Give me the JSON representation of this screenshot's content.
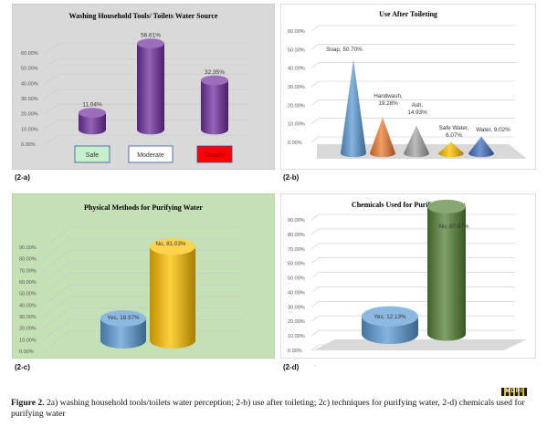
{
  "chart_data": [
    {
      "type": "bar",
      "title": "Washing Household Tools/ Toilets Water Source",
      "categories": [
        "Safe",
        "Moderate",
        "Unsafe"
      ],
      "values": [
        11.04,
        56.61,
        32.35
      ],
      "value_labels": [
        "11.04%",
        "56.61%",
        "32.35%"
      ],
      "ylim": [
        0,
        70
      ],
      "y_ticks": [
        "0.00%",
        "10.00%",
        "20.00%",
        "30.00%",
        "40.00%",
        "50.00%",
        "60.00%"
      ],
      "bar_color": "#7030a0",
      "category_box_colors": [
        "#c6efce",
        "#ffffff",
        "#ff0000"
      ],
      "grid": true,
      "background": "#d9d9d9"
    },
    {
      "type": "bar",
      "title": "Use After Toileting",
      "categories": [
        "Soap",
        "Handwash",
        "Ash",
        "Safe Water",
        "Water"
      ],
      "values": [
        50.7,
        19.28,
        14.93,
        6.07,
        9.02
      ],
      "value_labels": [
        "Soap, 50.70%",
        "Handwash, 19.28%",
        "Ash, 14.93%",
        "Safe Water, 6.07%",
        "Water, 9.02%"
      ],
      "ylim": [
        0,
        60
      ],
      "y_ticks": [
        "0.00%",
        "10.00%",
        "20.00%",
        "30.00%",
        "40.00%",
        "50.00%",
        "60.00%"
      ],
      "colors": [
        "#5b9bd5",
        "#ed7d31",
        "#a5a5a5",
        "#ffc000",
        "#4472c4"
      ],
      "grid": true
    },
    {
      "type": "bar",
      "title": "Physical Methods for Purifying Water",
      "categories": [
        "Yes",
        "No"
      ],
      "values": [
        18.97,
        81.03
      ],
      "value_labels": [
        "Yes, 18.97%",
        "No, 81.03%"
      ],
      "ylim": [
        0,
        90
      ],
      "y_ticks": [
        "0.00%",
        "10.00%",
        "20.00%",
        "30.00%",
        "40.00%",
        "50.00%",
        "60.00%",
        "70.00%",
        "80.00%",
        "90.00%"
      ],
      "colors": [
        "#5b9bd5",
        "#ffc000"
      ],
      "grid": true,
      "background": "#c5e0b4"
    },
    {
      "type": "bar",
      "title": "Chemicals Used for Purifying Water",
      "categories": [
        "Yes",
        "No"
      ],
      "values": [
        12.13,
        87.87
      ],
      "value_labels": [
        "Yes, 12.13%",
        "No, 87.87%"
      ],
      "ylim": [
        0,
        90
      ],
      "y_ticks": [
        "0.00%",
        "10.00%",
        "20.00%",
        "30.00%",
        "40.00%",
        "50.00%",
        "60.00%",
        "70.00%",
        "80.00%",
        "90.00%"
      ],
      "colors": [
        "#5b9bd5",
        "#548235"
      ],
      "grid": true
    }
  ],
  "panel_labels": [
    "(2-a)",
    "(2-b)",
    "(2-c)",
    "(2-d)"
  ],
  "stray_mark": "ˑ",
  "logo_text": "MDPI",
  "caption": {
    "prefix": "Figure 2.",
    "text": " 2a) washing household tools/toilets water perception; 2-b) use after toileting; 2c) techniques for purifying water, 2-d) chemicals used for purifying water"
  }
}
